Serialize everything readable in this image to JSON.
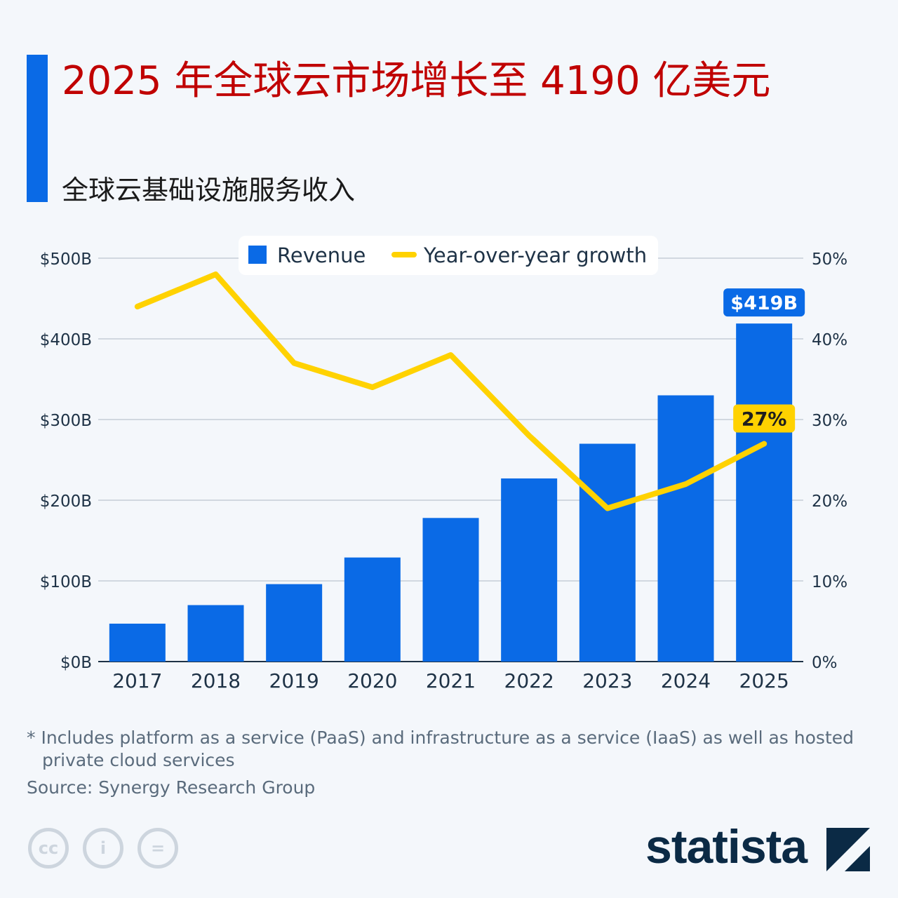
{
  "header": {
    "title": "2025 年全球云市场增长至 4190 亿美元",
    "subtitle": "全球云基础设施服务收入"
  },
  "chart_data": {
    "type": "bar",
    "title": "2025 年全球云市场增长至 4190 亿美元",
    "subtitle": "全球云基础设施服务收入",
    "categories": [
      "2017",
      "2018",
      "2019",
      "2020",
      "2021",
      "2022",
      "2023",
      "2024",
      "2025"
    ],
    "series": [
      {
        "name": "Revenue",
        "type": "bar",
        "axis": "left",
        "color": "#0a6ae6",
        "values": [
          47,
          70,
          96,
          129,
          178,
          227,
          270,
          330,
          419
        ]
      },
      {
        "name": "Year-over-year growth",
        "type": "line",
        "axis": "right",
        "color": "#ffd200",
        "values": [
          44,
          48,
          37,
          34,
          38,
          28,
          19,
          22,
          27
        ]
      }
    ],
    "left_axis": {
      "ylim": [
        0,
        500
      ],
      "ticks": [
        "$0B",
        "$100B",
        "$200B",
        "$300B",
        "$400B",
        "$500B"
      ]
    },
    "right_axis": {
      "ylim": [
        0,
        50
      ],
      "ticks": [
        "0%",
        "10%",
        "20%",
        "30%",
        "40%",
        "50%"
      ]
    },
    "data_labels": {
      "revenue_2025": "$419B",
      "growth_2025": "27%"
    },
    "legend_placement": "top-center",
    "grid": true
  },
  "footer": {
    "note": "* Includes platform as a service (PaaS) and infrastructure as a service (IaaS) as well as hosted private cloud services",
    "source": "Source: Synergy Research Group",
    "license_icons": [
      "cc-icon",
      "attribution-icon",
      "no-derivatives-icon"
    ],
    "logo": "statista"
  }
}
